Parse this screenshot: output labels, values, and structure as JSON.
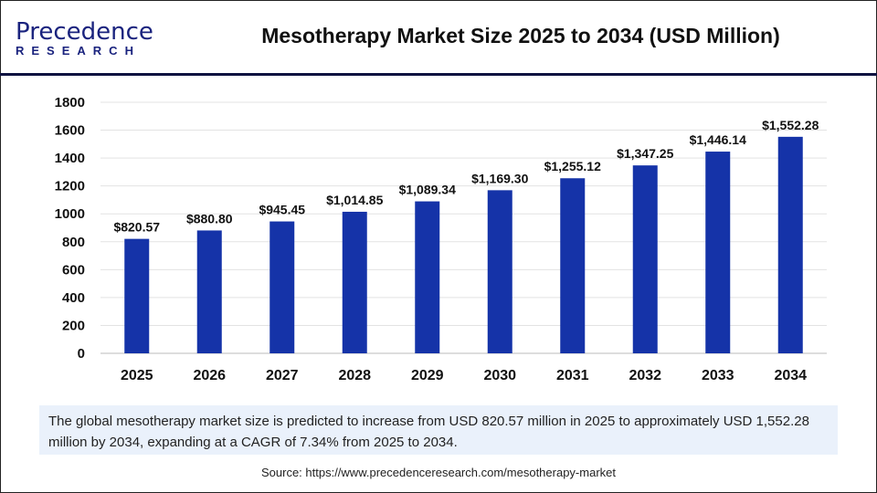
{
  "header": {
    "logo_line1": "Precedence",
    "logo_line2": "RESEARCH",
    "title": "Mesotherapy Market Size 2025 to 2034 (USD Million)"
  },
  "chart_data": {
    "type": "bar",
    "title": "Mesotherapy Market Size 2025 to 2034 (USD Million)",
    "categories": [
      "2025",
      "2026",
      "2027",
      "2028",
      "2029",
      "2030",
      "2031",
      "2032",
      "2033",
      "2034"
    ],
    "values": [
      820.57,
      880.8,
      945.45,
      1014.85,
      1089.34,
      1169.3,
      1255.12,
      1347.25,
      1446.14,
      1552.28
    ],
    "data_labels": [
      "$820.57",
      "$880.80",
      "$945.45",
      "$1,014.85",
      "$1,089.34",
      "$1,169.30",
      "$1,255.12",
      "$1,347.25",
      "$1,446.14",
      "$1,552.28"
    ],
    "yticks": [
      "0",
      "200",
      "400",
      "600",
      "800",
      "1000",
      "1200",
      "1400",
      "1600",
      "1800"
    ],
    "ylim": [
      0,
      1800
    ],
    "grid": true,
    "bar_color": "#1533a8",
    "xlabel": "",
    "ylabel": ""
  },
  "description": "The global mesotherapy market size is predicted to increase from USD 820.57 million in 2025 to approximately USD 1,552.28 million by 2034, expanding at a CAGR of 7.34% from 2025 to 2034.",
  "source": "Source: https://www.precedenceresearch.com/mesotherapy-market"
}
